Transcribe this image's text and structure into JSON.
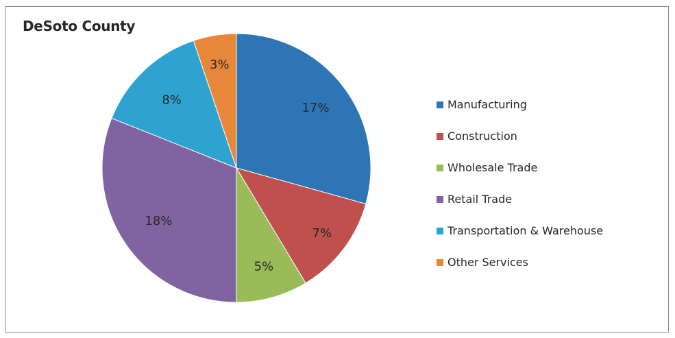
{
  "chart_data": {
    "type": "pie",
    "title": "DeSoto County",
    "categories": [
      "Manufacturing",
      "Construction",
      "Wholesale Trade",
      "Retail Trade",
      "Transportation & Warehouse",
      "Other Services"
    ],
    "values": [
      17,
      7,
      5,
      18,
      8,
      3
    ],
    "labels": [
      "17%",
      "7%",
      "5%",
      "18%",
      "8%",
      "3%"
    ],
    "colors": [
      "#2e75b6",
      "#c0504d",
      "#9bbb59",
      "#8064a2",
      "#2fa3d0",
      "#e6873a"
    ],
    "legend_position": "right"
  }
}
